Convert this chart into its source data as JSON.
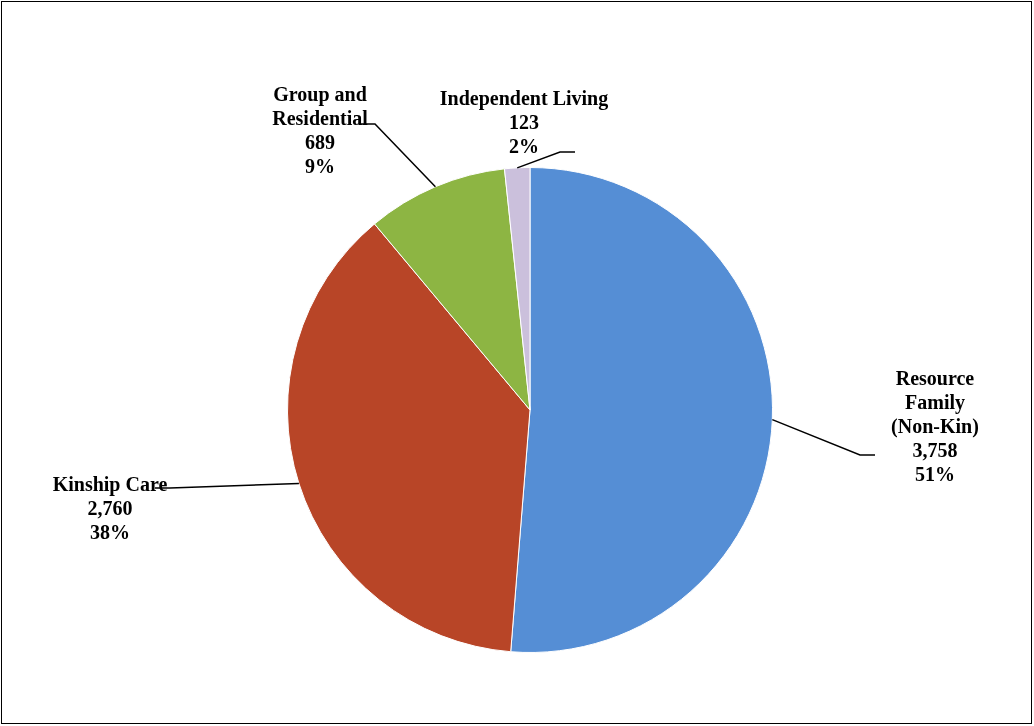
{
  "chart_data": {
    "type": "pie",
    "categories": [
      "Resource Family (Non-Kin)",
      "Kinship Care",
      "Group and Residential",
      "Independent Living"
    ],
    "values": [
      3758,
      2760,
      689,
      123
    ],
    "colors": [
      "#558ed5",
      "#b84527",
      "#8db543",
      "#cbc0dc"
    ],
    "value_labels": [
      "3,758\n51%",
      "2,760\n38%",
      "689\n9%",
      "123\n2%"
    ],
    "legend": false
  }
}
